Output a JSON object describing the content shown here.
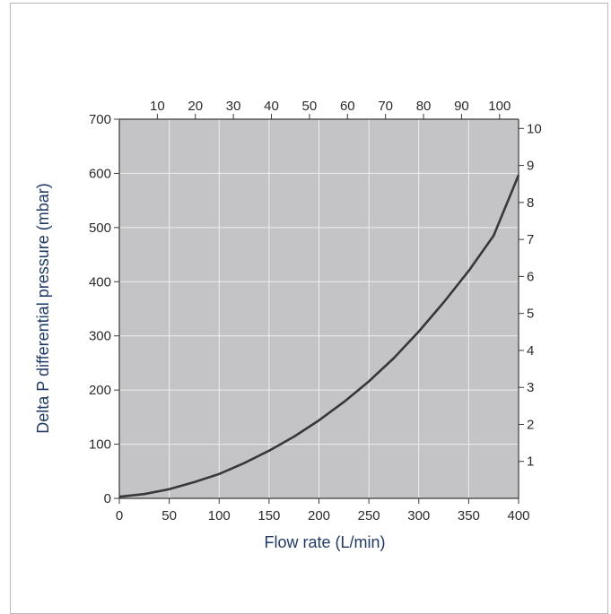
{
  "chart_data": {
    "type": "line",
    "xlabel": "Flow rate (L/min)",
    "ylabel": "Delta P differential pressure (mbar)",
    "xlim": [
      0,
      400
    ],
    "ylim": [
      0,
      700
    ],
    "x_ticks": [
      "0",
      "50",
      "100",
      "150",
      "200",
      "250",
      "300",
      "350",
      "400"
    ],
    "y_ticks": [
      "0",
      "100",
      "200",
      "300",
      "400",
      "500",
      "600",
      "700"
    ],
    "top_ticks": [
      "10",
      "20",
      "30",
      "40",
      "50",
      "60",
      "70",
      "80",
      "90",
      "100"
    ],
    "top_lim": [
      0,
      105
    ],
    "right_ticks": [
      "1",
      "2",
      "3",
      "4",
      "5",
      "6",
      "7",
      "8",
      "9",
      "10"
    ],
    "right_lim": [
      0,
      10.25
    ],
    "grid": true,
    "colors": {
      "plot_bg": "#c4c4c6",
      "grid": "#eeeeee",
      "curve": "#383838",
      "label": "#1e3a66"
    },
    "series": [
      {
        "x": [
          0,
          25,
          50,
          75,
          100,
          125,
          150,
          175,
          200,
          225,
          250,
          275,
          300,
          325,
          350,
          375,
          400
        ],
        "y": [
          3,
          8,
          17,
          30,
          45,
          65,
          88,
          114,
          144,
          178,
          216,
          259,
          308,
          362,
          420,
          485,
          597
        ]
      }
    ]
  }
}
